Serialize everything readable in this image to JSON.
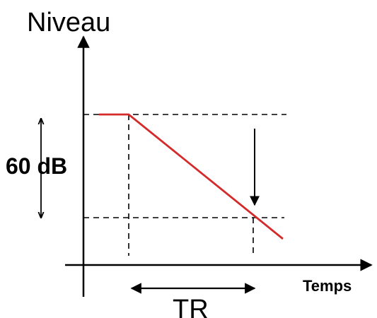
{
  "diagram": {
    "y_axis_label": "Niveau",
    "x_axis_label": "Temps",
    "amplitude_label": "60 dB",
    "duration_label": "TR"
  },
  "colors": {
    "decay_line": "#d42a2a",
    "axes": "#000000",
    "guides": "#000000"
  }
}
